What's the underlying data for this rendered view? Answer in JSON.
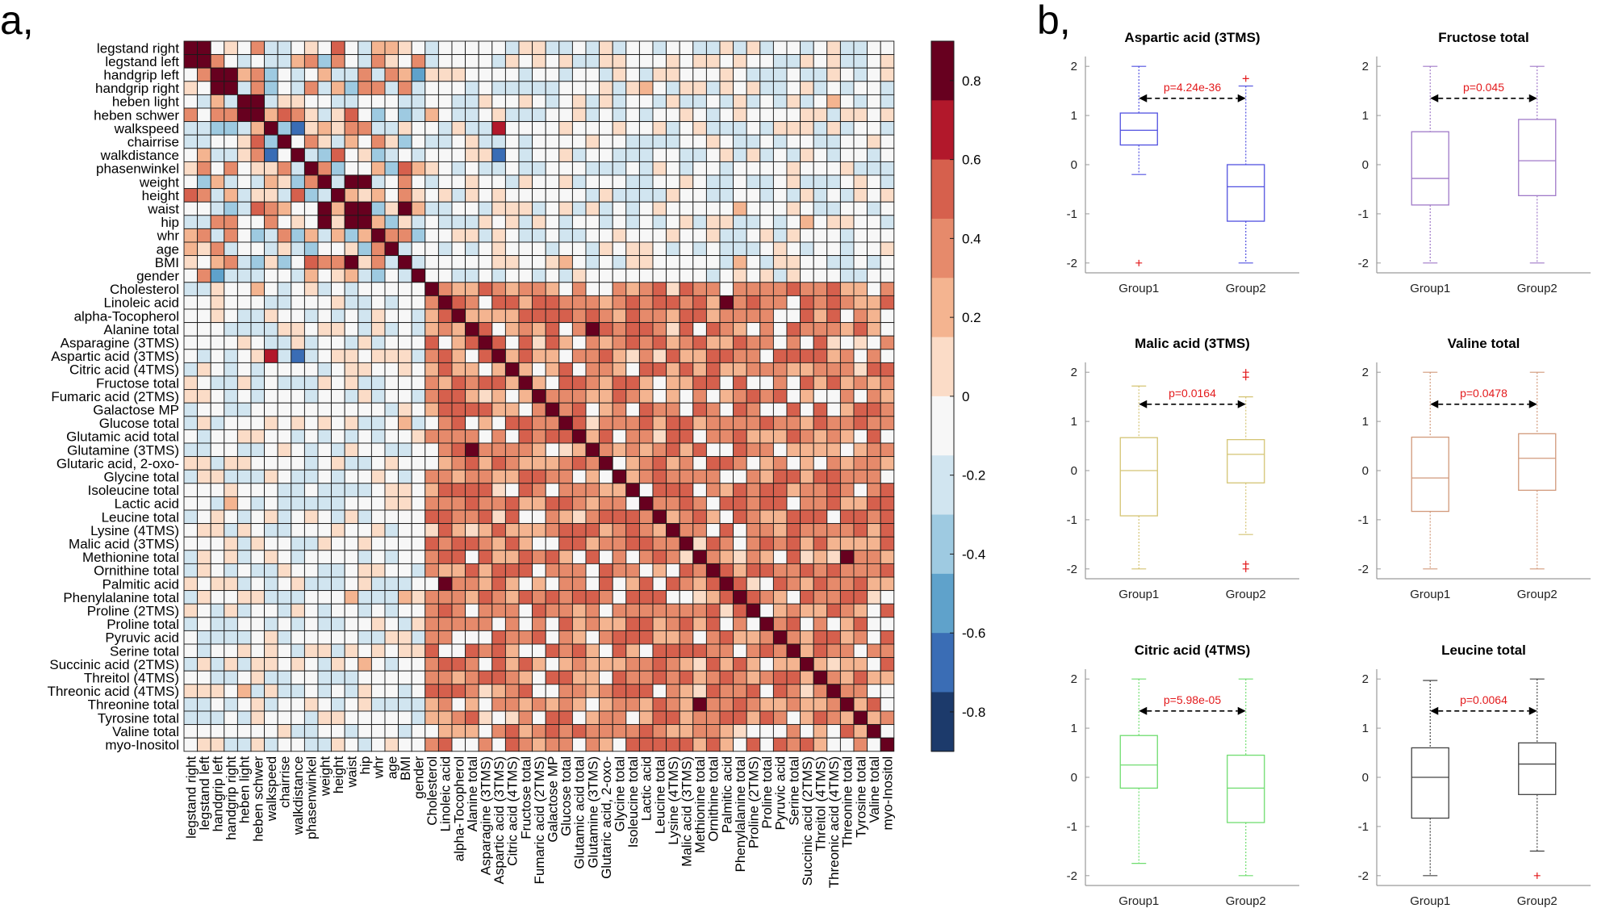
{
  "panels": {
    "a": "a,",
    "b": "b,"
  },
  "chart_data": [
    {
      "type": "heatmap",
      "title": "",
      "labels": [
        "legstand right",
        "legstand left",
        "handgrip left",
        "handgrip right",
        "heben light",
        "heben schwer",
        "walkspeed",
        "chairrise",
        "walkdistance",
        "phasenwinkel",
        "weight",
        "height",
        "waist",
        "hip",
        "whr",
        "age",
        "BMI",
        "gender",
        "Cholesterol",
        "Linoleic acid",
        "alpha-Tocopherol",
        "Alanine total",
        "Asparagine (3TMS)",
        "Aspartic acid (3TMS)",
        "Citric acid (4TMS)",
        "Fructose total",
        "Fumaric acid (2TMS)",
        "Galactose MP",
        "Glucose total",
        "Glutamic acid total",
        "Glutamine (3TMS)",
        "Glutaric acid, 2-oxo-",
        "Glycine total",
        "Isoleucine total",
        "Lactic acid",
        "Leucine total",
        "Lysine (4TMS)",
        "Malic acid (3TMS)",
        "Methionine total",
        "Ornithine total",
        "Palmitic acid",
        "Phenylalanine total",
        "Proline (2TMS)",
        "Proline total",
        "Pyruvic acid",
        "Serine total",
        "Succinic acid (2TMS)",
        "Threitol (4TMS)",
        "Threonic acid (4TMS)",
        "Threonine total",
        "Tyrosine total",
        "Valine total",
        "myo-Inositol"
      ],
      "colorbar": {
        "ticks": [
          0.8,
          0.6,
          0.4,
          0.2,
          0,
          -0.2,
          -0.4,
          -0.6,
          -0.8
        ],
        "range": [
          -0.9,
          0.9
        ]
      },
      "colors": [
        "#1c3a6b",
        "#3a6db5",
        "#5fa2cb",
        "#9ecae1",
        "#d1e5f0",
        "#f7f7f7",
        "#fbdcc7",
        "#f4b490",
        "#e68a6b",
        "#d6604d",
        "#b2182b",
        "#67001f"
      ],
      "groups": {
        "physical": [
          0,
          17
        ],
        "metabolites": [
          18,
          52
        ]
      },
      "notable_pairs": [
        {
          "a": "legstand right",
          "b": "legstand left",
          "r": 0.85
        },
        {
          "a": "handgrip left",
          "b": "handgrip right",
          "r": 0.88
        },
        {
          "a": "heben light",
          "b": "heben schwer",
          "r": 0.85
        },
        {
          "a": "weight",
          "b": "waist",
          "r": 0.85
        },
        {
          "a": "weight",
          "b": "hip",
          "r": 0.85
        },
        {
          "a": "waist",
          "b": "hip",
          "r": 0.88
        },
        {
          "a": "BMI",
          "b": "waist",
          "r": 0.85
        },
        {
          "a": "walkspeed",
          "b": "walkdistance",
          "r": -0.75
        },
        {
          "a": "handgrip left",
          "b": "gender",
          "r": -0.65
        },
        {
          "a": "Aspartic acid (3TMS)",
          "b": "walkdistance",
          "r": -0.8
        },
        {
          "a": "Aspartic acid (3TMS)",
          "b": "walkspeed",
          "r": 0.75
        },
        {
          "a": "Palmitic acid",
          "b": "Linoleic acid",
          "r": 0.85
        },
        {
          "a": "Glutamine (3TMS)",
          "b": "Alanine total",
          "r": 0.85
        },
        {
          "a": "Threonine total",
          "b": "Methionine total",
          "r": 0.85
        }
      ]
    },
    {
      "type": "box",
      "boxes": [
        {
          "title": "Aspartic acid (3TMS)",
          "color": "#5151e0",
          "p": "p=4.24e-36",
          "groups": [
            "Group1",
            "Group2"
          ],
          "stats": [
            {
              "min": -0.2,
              "q1": 0.4,
              "med": 0.7,
              "q3": 1.05,
              "max": 2,
              "outliers": [
                -2
              ]
            },
            {
              "min": -2,
              "q1": -1.15,
              "med": -0.45,
              "q3": 0,
              "max": 1.6,
              "outliers": [
                1.75
              ]
            }
          ],
          "ylim": [
            -2.2,
            2.2
          ],
          "yticks": [
            2,
            1,
            0,
            -1,
            -2
          ]
        },
        {
          "title": "Fructose total",
          "color": "#a07ac8",
          "p": "p=0.045",
          "groups": [
            "Group1",
            "Group2"
          ],
          "stats": [
            {
              "min": -2,
              "q1": -0.82,
              "med": -0.28,
              "q3": 0.67,
              "max": 2,
              "outliers": []
            },
            {
              "min": -2,
              "q1": -0.63,
              "med": 0.08,
              "q3": 0.92,
              "max": 2,
              "outliers": []
            }
          ],
          "ylim": [
            -2.2,
            2.2
          ],
          "yticks": [
            2,
            1,
            0,
            -1,
            -2
          ]
        },
        {
          "title": "Malic acid (3TMS)",
          "color": "#d4c473",
          "p": "p=0.0164",
          "groups": [
            "Group1",
            "Group2"
          ],
          "stats": [
            {
              "min": -2,
              "q1": -0.92,
              "med": 0,
              "q3": 0.67,
              "max": 1.72,
              "outliers": []
            },
            {
              "min": -1.3,
              "q1": -0.25,
              "med": 0.33,
              "q3": 0.63,
              "max": 1.5,
              "outliers": [
                2,
                1.9,
                -1.9,
                -2
              ]
            }
          ],
          "ylim": [
            -2.2,
            2.2
          ],
          "yticks": [
            2,
            1,
            0,
            -1,
            -2
          ]
        },
        {
          "title": "Valine total",
          "color": "#d29a7c",
          "p": "p=0.0478",
          "groups": [
            "Group1",
            "Group2"
          ],
          "stats": [
            {
              "min": -2,
              "q1": -0.83,
              "med": -0.15,
              "q3": 0.68,
              "max": 2,
              "outliers": []
            },
            {
              "min": -2,
              "q1": -0.4,
              "med": 0.25,
              "q3": 0.75,
              "max": 2,
              "outliers": []
            }
          ],
          "ylim": [
            -2.2,
            2.2
          ],
          "yticks": [
            2,
            1,
            0,
            -1,
            -2
          ]
        },
        {
          "title": "Citric acid (4TMS)",
          "color": "#6fdd6f",
          "p": "p=5.98e-05",
          "groups": [
            "Group1",
            "Group2"
          ],
          "stats": [
            {
              "min": -1.75,
              "q1": -0.22,
              "med": 0.25,
              "q3": 0.85,
              "max": 2,
              "outliers": []
            },
            {
              "min": -2,
              "q1": -0.92,
              "med": -0.22,
              "q3": 0.45,
              "max": 2,
              "outliers": []
            }
          ],
          "ylim": [
            -2.2,
            2.2
          ],
          "yticks": [
            2,
            1,
            0,
            -1,
            -2
          ]
        },
        {
          "title": "Leucine total",
          "color": "#444444",
          "p": "p=0.0064",
          "groups": [
            "Group1",
            "Group2"
          ],
          "stats": [
            {
              "min": -2,
              "q1": -0.83,
              "med": 0,
              "q3": 0.6,
              "max": 1.97,
              "outliers": []
            },
            {
              "min": -1.5,
              "q1": -0.35,
              "med": 0.27,
              "q3": 0.7,
              "max": 2,
              "outliers": [
                -2
              ]
            }
          ],
          "ylim": [
            -2.2,
            2.2
          ],
          "yticks": [
            2,
            1,
            0,
            -1,
            -2
          ]
        }
      ]
    }
  ]
}
